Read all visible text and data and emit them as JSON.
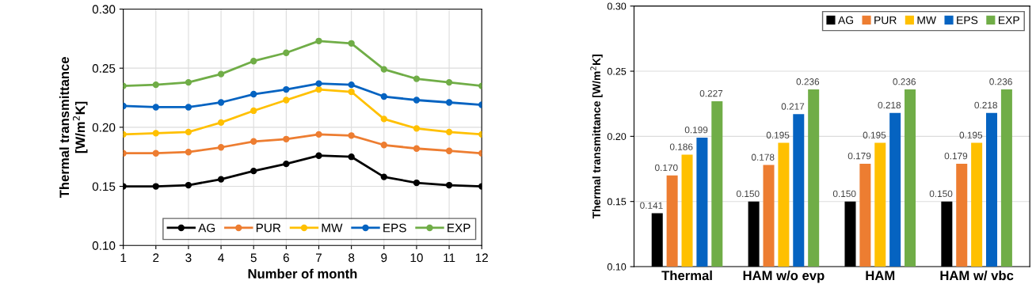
{
  "chart_data": [
    {
      "type": "line",
      "xlabel": "Number of month",
      "ylabel": "Thermal transmittance\n[W/m$^{2}$K]",
      "x": [
        1,
        2,
        3,
        4,
        5,
        6,
        7,
        8,
        9,
        10,
        11,
        12
      ],
      "xlim": [
        1,
        12
      ],
      "xticks": [
        1,
        2,
        3,
        4,
        5,
        6,
        7,
        8,
        9,
        10,
        11,
        12
      ],
      "ylim": [
        0.1,
        0.3
      ],
      "yticks": [
        {
          "value": 0.1,
          "label": "0.10"
        },
        {
          "value": 0.15,
          "label": "0.15"
        },
        {
          "value": 0.2,
          "label": "0.20"
        },
        {
          "value": 0.25,
          "label": "0.25"
        },
        {
          "value": 0.3,
          "label": "0.30"
        }
      ],
      "grid": true,
      "legend": "bottom right",
      "marker": "circle",
      "line_style": "solid",
      "series": [
        {
          "name": "AG",
          "color": "#000000",
          "values": [
            0.15,
            0.15,
            0.151,
            0.156,
            0.163,
            0.169,
            0.176,
            0.175,
            0.158,
            0.153,
            0.151,
            0.15
          ]
        },
        {
          "name": "PUR",
          "color": "#ed7d31",
          "values": [
            0.178,
            0.178,
            0.179,
            0.183,
            0.188,
            0.19,
            0.194,
            0.193,
            0.185,
            0.182,
            0.18,
            0.178
          ]
        },
        {
          "name": "MW",
          "color": "#ffc000",
          "values": [
            0.194,
            0.195,
            0.196,
            0.204,
            0.214,
            0.223,
            0.232,
            0.23,
            0.207,
            0.199,
            0.196,
            0.194
          ]
        },
        {
          "name": "EPS",
          "color": "#0563c1",
          "values": [
            0.218,
            0.217,
            0.217,
            0.221,
            0.228,
            0.232,
            0.237,
            0.236,
            0.226,
            0.223,
            0.221,
            0.219
          ]
        },
        {
          "name": "EXP",
          "color": "#70ad47",
          "values": [
            0.235,
            0.236,
            0.238,
            0.245,
            0.256,
            0.263,
            0.273,
            0.271,
            0.249,
            0.241,
            0.238,
            0.235
          ]
        }
      ]
    },
    {
      "type": "bar",
      "ylabel": "Thermal transmittance [W/m$^{2}$K]",
      "categories": [
        "Thermal",
        "HAM w/o evp",
        "HAM",
        "HAM w/ vbc"
      ],
      "ylim": [
        0.1,
        0.3
      ],
      "yticks": [
        {
          "value": 0.1,
          "label": "0.10"
        },
        {
          "value": 0.15,
          "label": "0.15"
        },
        {
          "value": 0.2,
          "label": "0.20"
        },
        {
          "value": 0.25,
          "label": "0.25"
        },
        {
          "value": 0.3,
          "label": "0.30"
        }
      ],
      "grid": "y",
      "legend": "top right",
      "series": [
        {
          "name": "AG",
          "color": "#000000",
          "values": [
            0.141,
            0.15,
            0.15,
            0.15
          ],
          "value_labels": [
            "0.141",
            "0.150",
            "0.150",
            "0.150"
          ]
        },
        {
          "name": "PUR",
          "color": "#ed7d31",
          "values": [
            0.17,
            0.178,
            0.179,
            0.179
          ],
          "value_labels": [
            "0.170",
            "0.178",
            "0.179",
            "0.179"
          ]
        },
        {
          "name": "MW",
          "color": "#ffc000",
          "values": [
            0.186,
            0.195,
            0.195,
            0.195
          ],
          "value_labels": [
            "0.186",
            "0.195",
            "0.195",
            "0.195"
          ]
        },
        {
          "name": "EPS",
          "color": "#0563c1",
          "values": [
            0.199,
            0.217,
            0.218,
            0.218
          ],
          "value_labels": [
            "0.199",
            "0.217",
            "0.218",
            "0.218"
          ]
        },
        {
          "name": "EXP",
          "color": "#70ad47",
          "values": [
            0.227,
            0.236,
            0.236,
            0.236
          ],
          "value_labels": [
            "0.227",
            "0.236",
            "0.236",
            "0.236"
          ]
        }
      ]
    }
  ]
}
